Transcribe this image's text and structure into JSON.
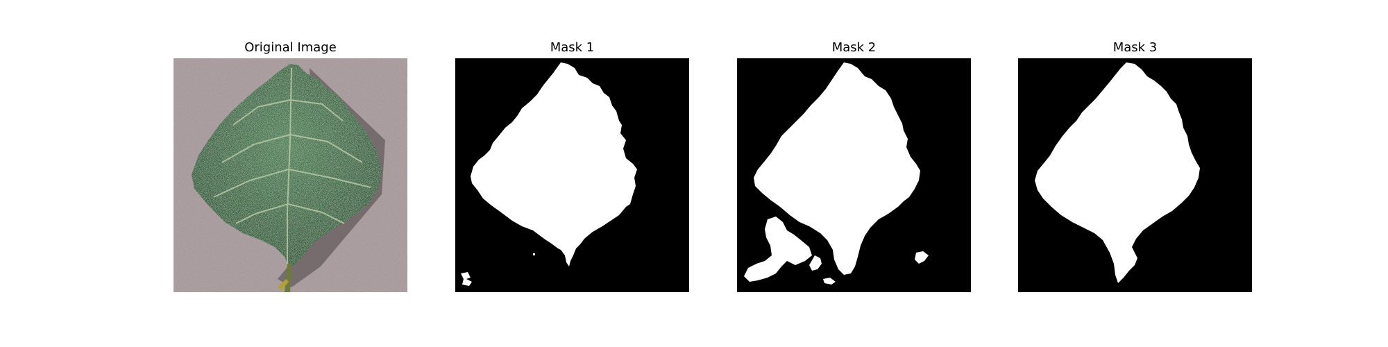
{
  "figure": {
    "panels": [
      {
        "title": "Original Image",
        "kind": "photo",
        "content": "green serrated leaf on a grey textured surface"
      },
      {
        "title": "Mask 1",
        "kind": "mask"
      },
      {
        "title": "Mask 2",
        "kind": "mask"
      },
      {
        "title": "Mask 3",
        "kind": "mask"
      }
    ],
    "colors": {
      "mask_background": "#000000",
      "mask_foreground": "#ffffff",
      "leaf": "#3a6b40",
      "leaf_vein": "#b7c9a4",
      "surface": "#b5a8aa"
    }
  }
}
